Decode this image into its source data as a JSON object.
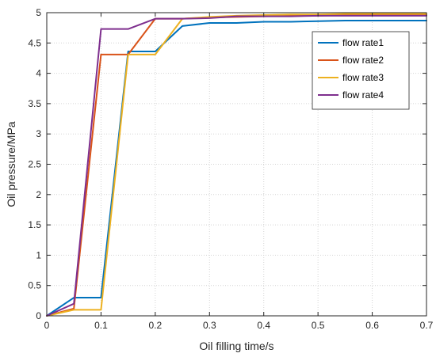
{
  "chart_data": {
    "type": "line",
    "title": "",
    "xlabel": "Oil filling time/s",
    "ylabel": "Oil pressure/MPa",
    "xlim": [
      0,
      0.7
    ],
    "ylim": [
      0,
      5
    ],
    "xticks": [
      0,
      0.1,
      0.2,
      0.3,
      0.4,
      0.5,
      0.6,
      0.7
    ],
    "xtick_labels": [
      "0",
      "0.1",
      "0.2",
      "0.3",
      "0.4",
      "0.5",
      "0.6",
      "0.7"
    ],
    "yticks": [
      0,
      0.5,
      1,
      1.5,
      2,
      2.5,
      3,
      3.5,
      4,
      4.5,
      5
    ],
    "ytick_labels": [
      "0",
      "0.5",
      "1",
      "1.5",
      "2",
      "2.5",
      "3",
      "3.5",
      "4",
      "4.5",
      "5"
    ],
    "grid": true,
    "legend_position": "top-right",
    "series": [
      {
        "name": "flow rate1",
        "color": "#0072BD",
        "x": [
          0,
          0.05,
          0.1,
          0.15,
          0.2,
          0.25,
          0.3,
          0.35,
          0.4,
          0.45,
          0.5,
          0.55,
          0.6,
          0.65,
          0.7
        ],
        "y": [
          0,
          0.3,
          0.3,
          4.36,
          4.36,
          4.78,
          4.83,
          4.83,
          4.85,
          4.85,
          4.86,
          4.87,
          4.87,
          4.87,
          4.87
        ]
      },
      {
        "name": "flow rate2",
        "color": "#D95319",
        "x": [
          0,
          0.05,
          0.1,
          0.15,
          0.2,
          0.25,
          0.3,
          0.35,
          0.4,
          0.45,
          0.5,
          0.55,
          0.6,
          0.65,
          0.7
        ],
        "y": [
          0,
          0.12,
          4.31,
          4.31,
          4.9,
          4.9,
          4.92,
          4.93,
          4.94,
          4.95,
          4.95,
          4.96,
          4.96,
          4.96,
          4.96
        ]
      },
      {
        "name": "flow rate3",
        "color": "#EDB120",
        "x": [
          0,
          0.05,
          0.1,
          0.15,
          0.2,
          0.25,
          0.3,
          0.35,
          0.4,
          0.45,
          0.5,
          0.55,
          0.6,
          0.65,
          0.7
        ],
        "y": [
          0,
          0.1,
          0.1,
          4.31,
          4.31,
          4.9,
          4.93,
          4.95,
          4.96,
          4.97,
          4.97,
          4.98,
          4.98,
          4.98,
          4.98
        ]
      },
      {
        "name": "flow rate4",
        "color": "#7E2F8E",
        "x": [
          0,
          0.05,
          0.1,
          0.15,
          0.2,
          0.25,
          0.3,
          0.35,
          0.4,
          0.45,
          0.5,
          0.55,
          0.6,
          0.65,
          0.7
        ],
        "y": [
          0,
          0.2,
          4.73,
          4.73,
          4.9,
          4.9,
          4.91,
          4.94,
          4.94,
          4.94,
          4.95,
          4.95,
          4.95,
          4.95,
          4.95
        ]
      }
    ]
  }
}
